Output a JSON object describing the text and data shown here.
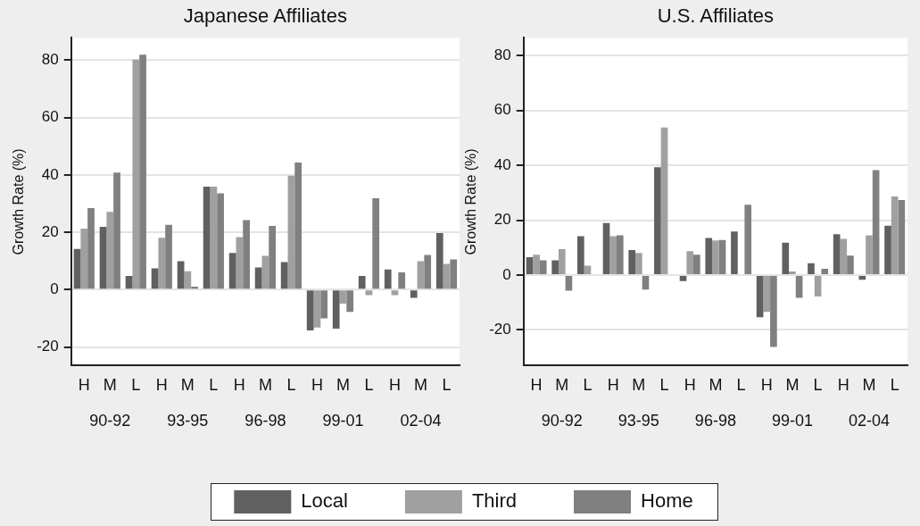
{
  "chart_data": [
    {
      "type": "bar",
      "title": "Japanese Affiliates",
      "ylabel": "Growth Rate (%)",
      "categories": [
        "H",
        "M",
        "L",
        "H",
        "M",
        "L",
        "H",
        "M",
        "L",
        "H",
        "M",
        "L",
        "H",
        "M",
        "L"
      ],
      "series": [
        {
          "name": "Local",
          "color": "#606060",
          "values": [
            14.2,
            21.9,
            4.8,
            7.4,
            9.9,
            35.9,
            12.8,
            7.7,
            9.6,
            -14.2,
            -13.6,
            4.8,
            7,
            -2.9,
            19.7
          ]
        },
        {
          "name": "Third",
          "color": "#a0a0a0",
          "values": [
            21.3,
            27.1,
            80.2,
            18.1,
            6.4,
            35.9,
            18.3,
            11.8,
            39.7,
            -13.2,
            -4.9,
            -1.9,
            -1.9,
            9.9,
            9
          ]
        },
        {
          "name": "Home",
          "color": "#808080",
          "values": [
            28.4,
            40.8,
            81.9,
            22.6,
            1,
            33.6,
            24.2,
            22.2,
            44.3,
            -10,
            -7.8,
            31.9,
            6,
            12.1,
            10.5
          ]
        }
      ],
      "annotations": [
        "90-92",
        "93-95",
        "96-98",
        "99-01",
        "02-04"
      ],
      "ylim": [
        -26.5,
        87.8
      ],
      "yticks": [
        -20,
        0,
        20,
        40,
        60,
        80
      ],
      "grid": "y",
      "legend": "bottom"
    },
    {
      "type": "bar",
      "title": "U.S. Affiliates",
      "ylabel": "Growth Rate (%)",
      "categories": [
        "H",
        "M",
        "L",
        "H",
        "M",
        "L",
        "H",
        "M",
        "L",
        "H",
        "M",
        "L",
        "H",
        "M",
        "L"
      ],
      "series": [
        {
          "color": "#606060",
          "values": [
            6.5,
            5.4,
            14.2,
            19,
            9.1,
            39.3,
            -2.2,
            13.5,
            15.9,
            -15.4,
            11.8,
            4.3,
            14.9,
            -1.7,
            18
          ]
        },
        {
          "color": "#a0a0a0",
          "values": [
            7.4,
            9.5,
            3.4,
            14.2,
            8.1,
            53.8,
            8.7,
            12.6,
            null,
            -13.4,
            1.3,
            -7.8,
            13.2,
            14.5,
            28.7
          ]
        },
        {
          "color": "#808080",
          "values": [
            5.4,
            -5.7,
            null,
            14.5,
            -5.3,
            null,
            7.4,
            12.8,
            25.7,
            -26.2,
            -8.3,
            2.3,
            7.1,
            38.3,
            27.4
          ]
        }
      ],
      "annotations": [
        "90-92",
        "93-95",
        "96-98",
        "99-01",
        "02-04"
      ],
      "ylim": [
        -33,
        86.5
      ],
      "yticks": [
        -20,
        0,
        20,
        40,
        60,
        80
      ],
      "grid": "y"
    }
  ]
}
